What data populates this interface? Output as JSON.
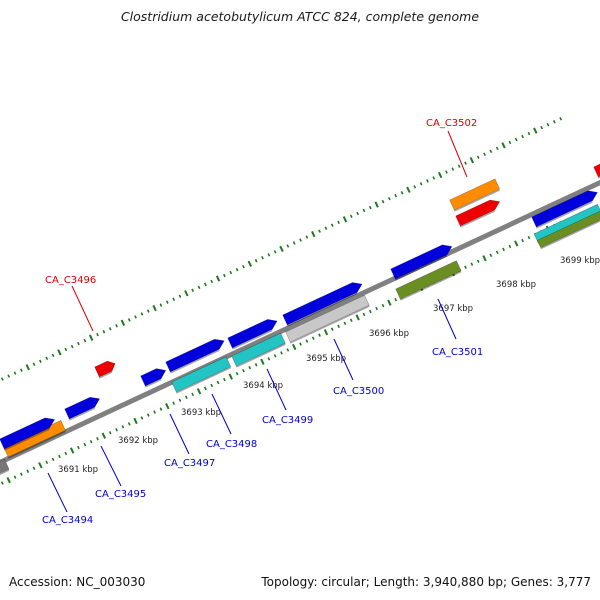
{
  "title": "Clostridium acetobutylicum ATCC 824, complete genome",
  "footer": {
    "accession": "Accession: NC_003030",
    "summary": "Topology: circular; Length: 3,940,880 bp; Genes: 3,777"
  },
  "colors": {
    "backbone": "#888888",
    "tick": "#1d7a1d",
    "forward_gene": "#0000dd",
    "reverse_gene": "#0000dd",
    "cyan_gene": "#22c4c4",
    "orange_gene": "#ff8c00",
    "red_gene": "#ee0000",
    "olive_gene": "#6b8e23",
    "grey_gene": "#c8c8c8",
    "label_blue": "#0000cc",
    "label_red": "#dd0000"
  },
  "scale_labels": [
    "3691 kbp",
    "3692 kbp",
    "3693 kbp",
    "3694 kbp",
    "3695 kbp",
    "3696 kbp",
    "3697 kbp",
    "3698 kbp",
    "3699 kbp"
  ],
  "gene_labels": [
    {
      "name": "CA_C3494",
      "color": "blue"
    },
    {
      "name": "CA_C3495",
      "color": "blue"
    },
    {
      "name": "CA_C3496",
      "color": "red"
    },
    {
      "name": "CA_C3497",
      "color": "blue"
    },
    {
      "name": "CA_C3498",
      "color": "blue"
    },
    {
      "name": "CA_C3499",
      "color": "blue"
    },
    {
      "name": "CA_C3500",
      "color": "blue"
    },
    {
      "name": "CA_C3501",
      "color": "blue"
    },
    {
      "name": "CA_C3502",
      "color": "red"
    }
  ]
}
